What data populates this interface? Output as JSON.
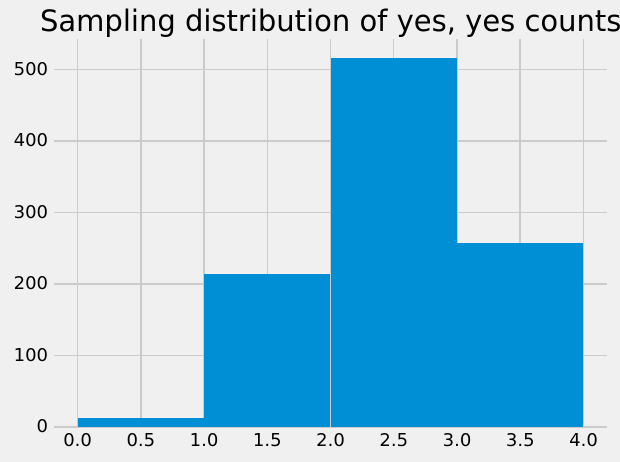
{
  "chart_data": {
    "type": "bar",
    "subtype": "histogram",
    "title": "Sampling distribution of yes, yes counts",
    "xlabel": "",
    "ylabel": "",
    "bin_edges": [
      0,
      1,
      2,
      3,
      4
    ],
    "counts": [
      12,
      214,
      517,
      257
    ],
    "categories": [
      "0-1",
      "1-2",
      "2-3",
      "3-4"
    ],
    "values": [
      12,
      214,
      517,
      257
    ],
    "xticks": [
      "0.0",
      "0.5",
      "1.0",
      "1.5",
      "2.0",
      "2.5",
      "3.0",
      "3.5",
      "4.0"
    ],
    "xtick_values": [
      0,
      0.5,
      1,
      1.5,
      2,
      2.5,
      3,
      3.5,
      4
    ],
    "yticks": [
      "0",
      "100",
      "200",
      "300",
      "400",
      "500"
    ],
    "ytick_values": [
      0,
      100,
      200,
      300,
      400,
      500
    ],
    "xlim": [
      -0.186,
      4.186
    ],
    "ylim": [
      0,
      543
    ],
    "grid": true,
    "legend": false,
    "colors": {
      "bar": "#008fd5",
      "background": "#f0f0f0",
      "gridline": "#cbcbcb",
      "text": "#000000"
    }
  }
}
